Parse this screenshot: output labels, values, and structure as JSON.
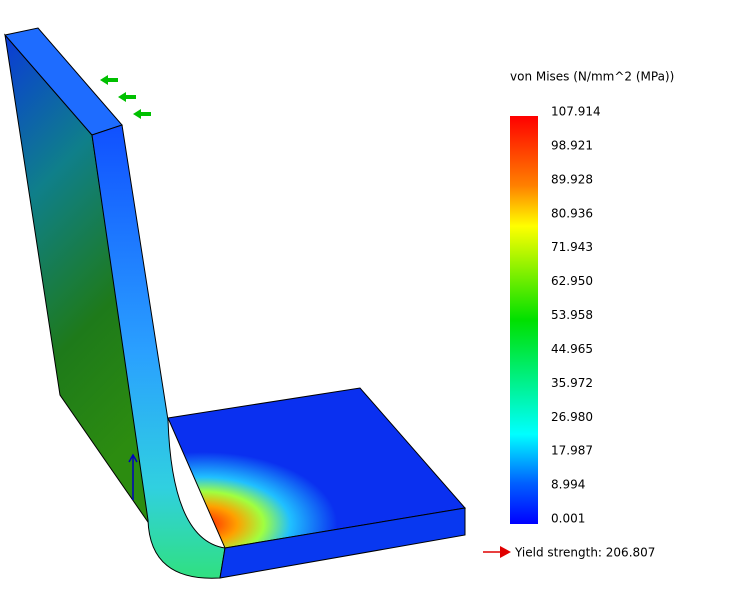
{
  "legend": {
    "title": "von Mises (N/mm^2 (MPa))",
    "labels": [
      "107.914",
      "98.921",
      "89.928",
      "80.936",
      "71.943",
      "62.950",
      "53.958",
      "44.965",
      "35.972",
      "26.980",
      "17.987",
      "8.994",
      "0.001"
    ]
  },
  "yield_strength": "Yield strength: 206.807"
}
